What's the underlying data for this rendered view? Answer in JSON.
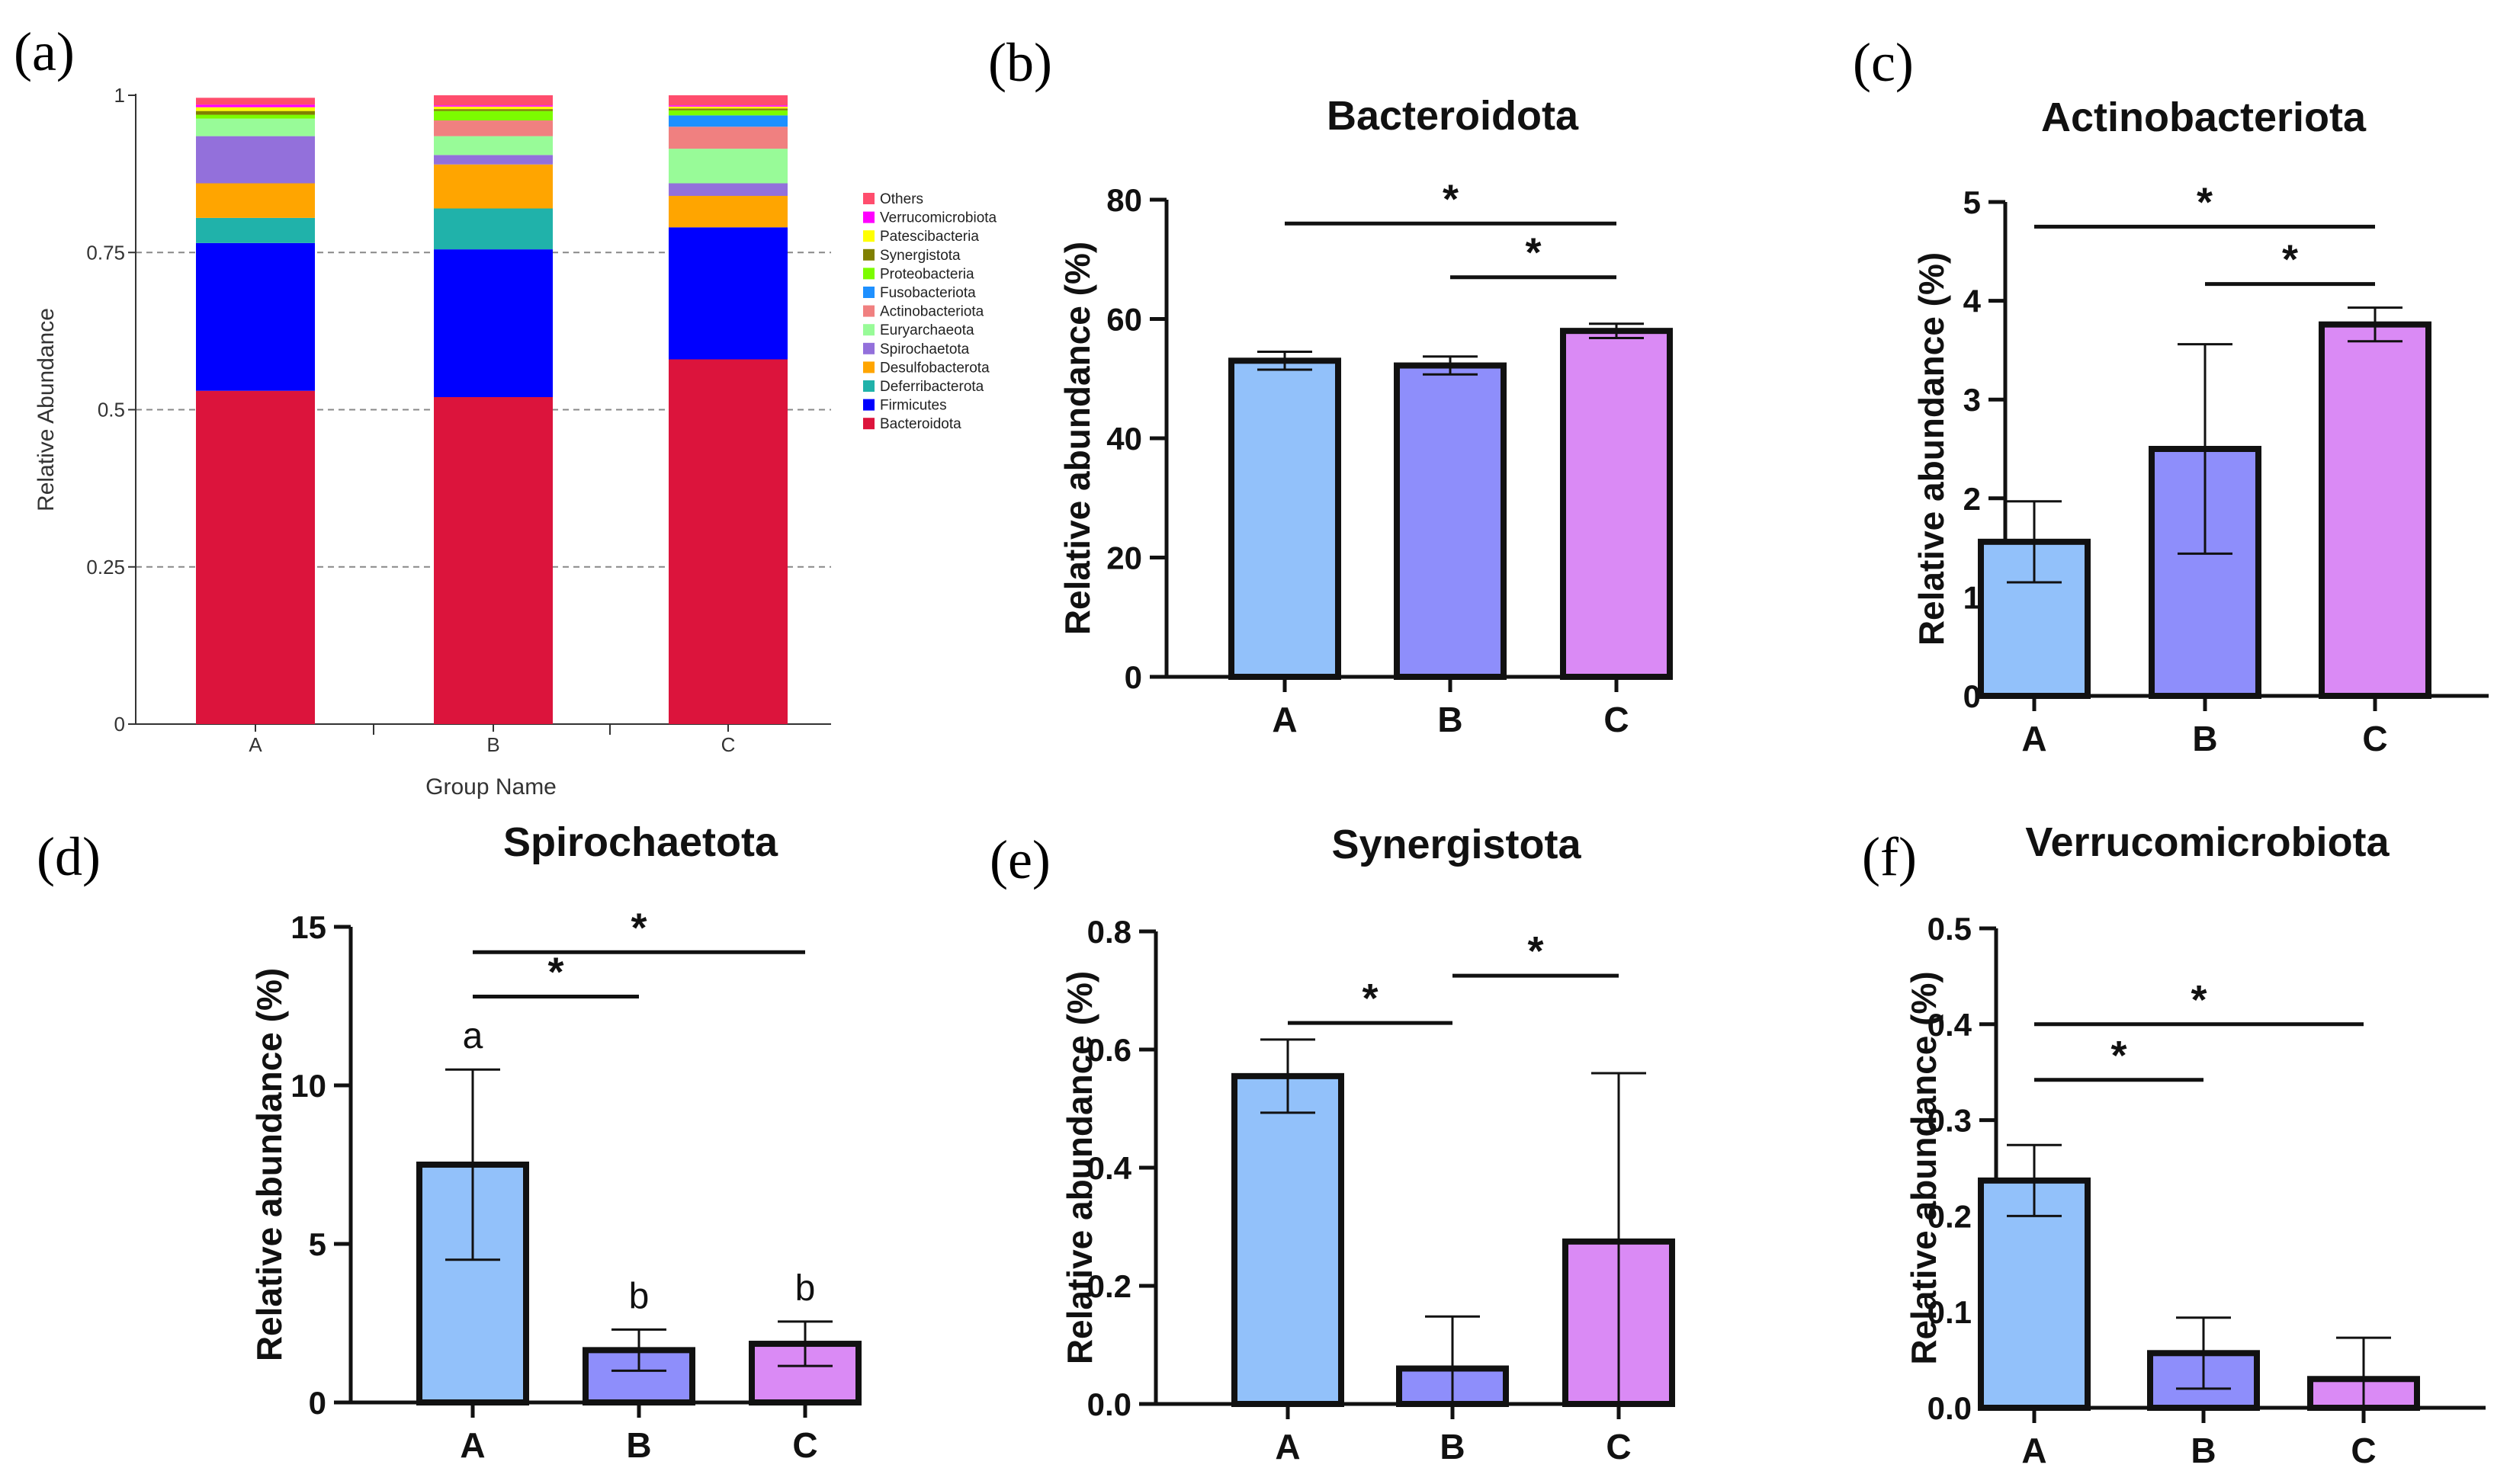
{
  "panels": {
    "a": "(a)",
    "b": "(b)",
    "c": "(c)",
    "d": "(d)",
    "e": "(e)",
    "f": "(f)"
  },
  "chart_data": [
    {
      "id": "a",
      "type": "bar",
      "stacked": true,
      "title": "",
      "xlabel": "Group Name",
      "ylabel": "Relative Abundance",
      "categories": [
        "A",
        "B",
        "C"
      ],
      "ylim": [
        0,
        1
      ],
      "yticks": [
        0,
        0.25,
        0.5,
        0.75,
        1
      ],
      "ytick_labels": [
        "0",
        "0.25",
        "0.5",
        "0.75",
        "1"
      ],
      "grid": "dashed horizontal",
      "legend_position": "right",
      "legend_order": [
        "Others",
        "Verrucomicrobiota",
        "Patescibacteria",
        "Synergistota",
        "Proteobacteria",
        "Fusobacteriota",
        "Actinobacteriota",
        "Euryarchaeota",
        "Spirochaetota",
        "Desulfobacterota",
        "Deferribacterota",
        "Firmicutes",
        "Bacteroidota"
      ],
      "series": [
        {
          "name": "Bacteroidota",
          "color": "#dc143c",
          "values": [
            0.53,
            0.52,
            0.58
          ]
        },
        {
          "name": "Firmicutes",
          "color": "#0000ff",
          "values": [
            0.235,
            0.235,
            0.21
          ]
        },
        {
          "name": "Deferribacterota",
          "color": "#20b2aa",
          "values": [
            0.04,
            0.065,
            0.0
          ]
        },
        {
          "name": "Desulfobacterota",
          "color": "#ffa500",
          "values": [
            0.055,
            0.07,
            0.05
          ]
        },
        {
          "name": "Spirochaetota",
          "color": "#9370db",
          "values": [
            0.075,
            0.015,
            0.02
          ]
        },
        {
          "name": "Euryarchaeota",
          "color": "#98fb98",
          "values": [
            0.028,
            0.03,
            0.055
          ]
        },
        {
          "name": "Actinobacteriota",
          "color": "#f08080",
          "values": [
            0.0,
            0.025,
            0.035
          ]
        },
        {
          "name": "Fusobacteriota",
          "color": "#1e90ff",
          "values": [
            0.0,
            0.0,
            0.018
          ]
        },
        {
          "name": "Proteobacteria",
          "color": "#7cfc00",
          "values": [
            0.006,
            0.015,
            0.008
          ]
        },
        {
          "name": "Synergistota",
          "color": "#808000",
          "values": [
            0.006,
            0.003,
            0.003
          ]
        },
        {
          "name": "Patescibacteria",
          "color": "#ffff00",
          "values": [
            0.006,
            0.004,
            0.003
          ]
        },
        {
          "name": "Verrucomicrobiota",
          "color": "#ff00ff",
          "values": [
            0.004,
            0.002,
            0.002
          ]
        },
        {
          "name": "Others",
          "color": "#ff4d6d",
          "values": [
            0.011,
            0.016,
            0.016
          ]
        }
      ]
    },
    {
      "id": "b",
      "type": "bar",
      "title": "Bacteroidota",
      "ylabel": "Relative abundance (%)",
      "categories": [
        "A",
        "B",
        "C"
      ],
      "values": [
        53,
        52.2,
        58
      ],
      "errors": [
        1.5,
        1.5,
        1.2
      ],
      "ylim": [
        0,
        80
      ],
      "yticks": [
        0,
        20,
        40,
        60,
        80
      ],
      "ytick_labels": [
        "0",
        "20",
        "40",
        "60",
        "80"
      ],
      "colors": [
        "#92c1fa",
        "#8e8efb",
        "#da8af5"
      ],
      "significance": [
        {
          "from": 0,
          "to": 2,
          "y": 76,
          "label": "*"
        },
        {
          "from": 1,
          "to": 2,
          "y": 67,
          "label": "*"
        }
      ]
    },
    {
      "id": "c",
      "type": "bar",
      "title": "Actinobacteriota",
      "ylabel": "Relative abundance (%)",
      "categories": [
        "A",
        "B",
        "C"
      ],
      "values": [
        1.56,
        2.5,
        3.76
      ],
      "errors": [
        0.41,
        1.06,
        0.17
      ],
      "ylim": [
        0,
        5
      ],
      "yticks": [
        0,
        1,
        2,
        3,
        4,
        5
      ],
      "ytick_labels": [
        "0",
        "1",
        "2",
        "3",
        "4",
        "5"
      ],
      "colors": [
        "#92c1fa",
        "#8e8efb",
        "#da8af5"
      ],
      "significance": [
        {
          "from": 0,
          "to": 2,
          "y": 4.75,
          "label": "*"
        },
        {
          "from": 1,
          "to": 2,
          "y": 4.17,
          "label": "*"
        }
      ]
    },
    {
      "id": "d",
      "type": "bar",
      "title": "Spirochaetota",
      "ylabel": "Relative abundance (%)",
      "categories": [
        "A",
        "B",
        "C"
      ],
      "values": [
        7.5,
        1.65,
        1.85
      ],
      "errors": [
        3.0,
        0.65,
        0.7
      ],
      "ylim": [
        0,
        15
      ],
      "yticks": [
        0,
        5,
        10,
        15
      ],
      "ytick_labels": [
        "0",
        "5",
        "10",
        "15"
      ],
      "colors": [
        "#92c1fa",
        "#8e8efb",
        "#da8af5"
      ],
      "group_letters": [
        "a",
        "b",
        "b"
      ],
      "significance": [
        {
          "from": 0,
          "to": 1,
          "y": 12.8,
          "label": "*"
        },
        {
          "from": 0,
          "to": 2,
          "y": 14.2,
          "label": "*"
        }
      ]
    },
    {
      "id": "e",
      "type": "bar",
      "title": "Synergistota",
      "ylabel": "Relative abundance (%)",
      "categories": [
        "A",
        "B",
        "C"
      ],
      "values": [
        0.555,
        0.06,
        0.275
      ],
      "errors": [
        0.062,
        0.088,
        0.285
      ],
      "ylim": [
        0,
        0.8
      ],
      "yticks": [
        0,
        0.2,
        0.4,
        0.6,
        0.8
      ],
      "ytick_labels": [
        "0.0",
        "0.2",
        "0.4",
        "0.6",
        "0.8"
      ],
      "colors": [
        "#92c1fa",
        "#8e8efb",
        "#da8af5"
      ],
      "significance": [
        {
          "from": 0,
          "to": 1,
          "y": 0.645,
          "label": "*"
        },
        {
          "from": 1,
          "to": 2,
          "y": 0.725,
          "label": "*"
        }
      ]
    },
    {
      "id": "f",
      "type": "bar",
      "title": "Verrucomicrobiota",
      "ylabel": "Relative abundance (%)",
      "categories": [
        "A",
        "B",
        "C"
      ],
      "values": [
        0.237,
        0.057,
        0.03
      ],
      "errors": [
        0.037,
        0.037,
        0.043
      ],
      "ylim": [
        0,
        0.5
      ],
      "yticks": [
        0,
        0.1,
        0.2,
        0.3,
        0.4,
        0.5
      ],
      "ytick_labels": [
        "0.0",
        "0.1",
        "0.2",
        "0.3",
        "0.4",
        "0.5"
      ],
      "colors": [
        "#92c1fa",
        "#8e8efb",
        "#da8af5"
      ],
      "significance": [
        {
          "from": 0,
          "to": 1,
          "y": 0.342,
          "label": "*"
        },
        {
          "from": 0,
          "to": 2,
          "y": 0.4,
          "label": "*"
        }
      ]
    }
  ]
}
